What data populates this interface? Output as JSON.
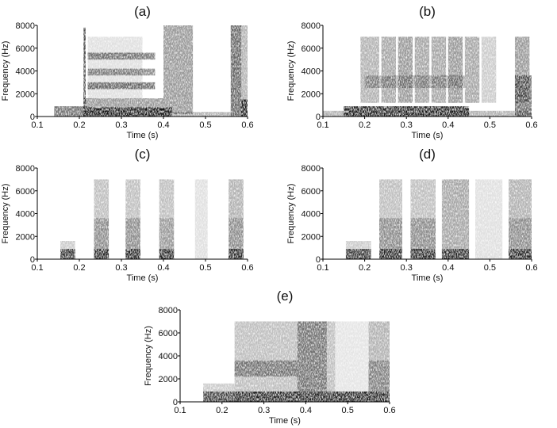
{
  "chart_data": [
    {
      "type": "heatmap",
      "title": "(a)",
      "xlabel": "Time (s)",
      "ylabel": "Frequency (Hz)",
      "xlim": [
        0.1,
        0.6
      ],
      "ylim": [
        0,
        8000
      ],
      "x_ticks": [
        "0.1",
        "0.2",
        "0.3",
        "0.4",
        "0.5",
        "0.6"
      ],
      "y_ticks": [
        "0",
        "2000",
        "4000",
        "6000",
        "8000"
      ],
      "grid": false,
      "colormap": "grayscale",
      "regions": [
        {
          "t": [
            0.14,
            0.22
          ],
          "f": [
            0,
            900
          ],
          "intensity": 0.55
        },
        {
          "t": [
            0.21,
            0.42
          ],
          "f": [
            0,
            800
          ],
          "intensity": 0.9
        },
        {
          "t": [
            0.21,
            0.4
          ],
          "f": [
            800,
            1600
          ],
          "intensity": 0.4
        },
        {
          "t": [
            0.22,
            0.38
          ],
          "f": [
            2400,
            3000
          ],
          "intensity": 0.55
        },
        {
          "t": [
            0.22,
            0.38
          ],
          "f": [
            3600,
            4200
          ],
          "intensity": 0.45
        },
        {
          "t": [
            0.22,
            0.38
          ],
          "f": [
            5000,
            5600
          ],
          "intensity": 0.5
        },
        {
          "t": [
            0.22,
            0.35
          ],
          "f": [
            1600,
            7000
          ],
          "intensity": 0.12
        },
        {
          "t": [
            0.4,
            0.47
          ],
          "f": [
            200,
            8000
          ],
          "intensity": 0.4
        },
        {
          "t": [
            0.42,
            0.56
          ],
          "f": [
            0,
            400
          ],
          "intensity": 0.3
        },
        {
          "t": [
            0.21,
            0.215
          ],
          "f": [
            0,
            7800
          ],
          "intensity": 0.7
        },
        {
          "t": [
            0.56,
            0.585
          ],
          "f": [
            0,
            8000
          ],
          "intensity": 0.6
        },
        {
          "t": [
            0.585,
            0.6
          ],
          "f": [
            0,
            1500
          ],
          "intensity": 0.9
        },
        {
          "t": [
            0.585,
            0.6
          ],
          "f": [
            1500,
            8000
          ],
          "intensity": 0.3
        }
      ]
    },
    {
      "type": "heatmap",
      "title": "(b)",
      "xlabel": "Time (s)",
      "ylabel": "Frequency (Hz)",
      "xlim": [
        0.1,
        0.6
      ],
      "ylim": [
        0,
        8000
      ],
      "x_ticks": [
        "0.1",
        "0.2",
        "0.3",
        "0.4",
        "0.5",
        "0.6"
      ],
      "y_ticks": [
        "0",
        "2000",
        "4000",
        "6000",
        "8000"
      ],
      "grid": false,
      "colormap": "grayscale",
      "regions": [
        {
          "t": [
            0.1,
            0.6
          ],
          "f": [
            0,
            500
          ],
          "intensity": 0.3
        },
        {
          "t": [
            0.15,
            0.45
          ],
          "f": [
            0,
            900
          ],
          "intensity": 0.85
        },
        {
          "t": [
            0.19,
            0.235
          ],
          "f": [
            1200,
            7000
          ],
          "intensity": 0.3
        },
        {
          "t": [
            0.24,
            0.275
          ],
          "f": [
            1200,
            7000
          ],
          "intensity": 0.35
        },
        {
          "t": [
            0.28,
            0.315
          ],
          "f": [
            1200,
            7000
          ],
          "intensity": 0.4
        },
        {
          "t": [
            0.32,
            0.355
          ],
          "f": [
            1200,
            7000
          ],
          "intensity": 0.35
        },
        {
          "t": [
            0.36,
            0.395
          ],
          "f": [
            1200,
            7000
          ],
          "intensity": 0.35
        },
        {
          "t": [
            0.4,
            0.435
          ],
          "f": [
            1200,
            7000
          ],
          "intensity": 0.4
        },
        {
          "t": [
            0.44,
            0.475
          ],
          "f": [
            1200,
            7000
          ],
          "intensity": 0.35
        },
        {
          "t": [
            0.48,
            0.515
          ],
          "f": [
            1200,
            7000
          ],
          "intensity": 0.2
        },
        {
          "t": [
            0.56,
            0.595
          ],
          "f": [
            1200,
            7000
          ],
          "intensity": 0.4
        },
        {
          "t": [
            0.2,
            0.44
          ],
          "f": [
            2500,
            3600
          ],
          "intensity": 0.3
        },
        {
          "t": [
            0.56,
            0.6
          ],
          "f": [
            0,
            3600
          ],
          "intensity": 0.55
        }
      ]
    },
    {
      "type": "heatmap",
      "title": "(c)",
      "xlabel": "Time (s)",
      "ylabel": "Frequency (Hz)",
      "xlim": [
        0.1,
        0.6
      ],
      "ylim": [
        0,
        8000
      ],
      "x_ticks": [
        "0.1",
        "0.2",
        "0.3",
        "0.4",
        "0.5",
        "0.6"
      ],
      "y_ticks": [
        "0",
        "2000",
        "4000",
        "6000",
        "8000"
      ],
      "grid": false,
      "colormap": "grayscale",
      "regions": [
        {
          "t": [
            0.155,
            0.19
          ],
          "f": [
            0,
            900
          ],
          "intensity": 0.8
        },
        {
          "t": [
            0.155,
            0.19
          ],
          "f": [
            900,
            1600
          ],
          "intensity": 0.2
        },
        {
          "t": [
            0.235,
            0.27
          ],
          "f": [
            0,
            900
          ],
          "intensity": 0.85
        },
        {
          "t": [
            0.235,
            0.27
          ],
          "f": [
            900,
            3600
          ],
          "intensity": 0.45
        },
        {
          "t": [
            0.235,
            0.27
          ],
          "f": [
            3600,
            7000
          ],
          "intensity": 0.25
        },
        {
          "t": [
            0.31,
            0.345
          ],
          "f": [
            0,
            900
          ],
          "intensity": 0.85
        },
        {
          "t": [
            0.31,
            0.345
          ],
          "f": [
            900,
            3600
          ],
          "intensity": 0.45
        },
        {
          "t": [
            0.31,
            0.345
          ],
          "f": [
            3600,
            7000
          ],
          "intensity": 0.25
        },
        {
          "t": [
            0.39,
            0.425
          ],
          "f": [
            0,
            900
          ],
          "intensity": 0.85
        },
        {
          "t": [
            0.39,
            0.425
          ],
          "f": [
            900,
            3600
          ],
          "intensity": 0.4
        },
        {
          "t": [
            0.39,
            0.425
          ],
          "f": [
            3600,
            7000
          ],
          "intensity": 0.25
        },
        {
          "t": [
            0.475,
            0.505
          ],
          "f": [
            0,
            7000
          ],
          "intensity": 0.12
        },
        {
          "t": [
            0.555,
            0.59
          ],
          "f": [
            0,
            900
          ],
          "intensity": 0.85
        },
        {
          "t": [
            0.555,
            0.59
          ],
          "f": [
            900,
            3600
          ],
          "intensity": 0.45
        },
        {
          "t": [
            0.555,
            0.59
          ],
          "f": [
            3600,
            7000
          ],
          "intensity": 0.3
        }
      ]
    },
    {
      "type": "heatmap",
      "title": "(d)",
      "xlabel": "Time (s)",
      "ylabel": "Frequency (Hz)",
      "xlim": [
        0.1,
        0.6
      ],
      "ylim": [
        0,
        8000
      ],
      "x_ticks": [
        "0.1",
        "0.2",
        "0.3",
        "0.4",
        "0.5",
        "0.6"
      ],
      "y_ticks": [
        "0",
        "2000",
        "4000",
        "6000",
        "8000"
      ],
      "grid": false,
      "colormap": "grayscale",
      "regions": [
        {
          "t": [
            0.155,
            0.215
          ],
          "f": [
            0,
            900
          ],
          "intensity": 0.8
        },
        {
          "t": [
            0.155,
            0.215
          ],
          "f": [
            900,
            1600
          ],
          "intensity": 0.2
        },
        {
          "t": [
            0.235,
            0.29
          ],
          "f": [
            0,
            900
          ],
          "intensity": 0.85
        },
        {
          "t": [
            0.235,
            0.29
          ],
          "f": [
            900,
            3600
          ],
          "intensity": 0.45
        },
        {
          "t": [
            0.235,
            0.29
          ],
          "f": [
            3600,
            7000
          ],
          "intensity": 0.25
        },
        {
          "t": [
            0.31,
            0.37
          ],
          "f": [
            0,
            900
          ],
          "intensity": 0.85
        },
        {
          "t": [
            0.31,
            0.37
          ],
          "f": [
            900,
            3600
          ],
          "intensity": 0.45
        },
        {
          "t": [
            0.31,
            0.37
          ],
          "f": [
            3600,
            7000
          ],
          "intensity": 0.25
        },
        {
          "t": [
            0.385,
            0.45
          ],
          "f": [
            0,
            900
          ],
          "intensity": 0.85
        },
        {
          "t": [
            0.385,
            0.45
          ],
          "f": [
            900,
            7000
          ],
          "intensity": 0.35
        },
        {
          "t": [
            0.465,
            0.53
          ],
          "f": [
            0,
            7000
          ],
          "intensity": 0.12
        },
        {
          "t": [
            0.545,
            0.6
          ],
          "f": [
            0,
            900
          ],
          "intensity": 0.85
        },
        {
          "t": [
            0.545,
            0.6
          ],
          "f": [
            900,
            3600
          ],
          "intensity": 0.45
        },
        {
          "t": [
            0.545,
            0.6
          ],
          "f": [
            3600,
            7000
          ],
          "intensity": 0.3
        }
      ]
    },
    {
      "type": "heatmap",
      "title": "(e)",
      "xlabel": "Time (s)",
      "ylabel": "Frequency (Hz)",
      "xlim": [
        0.1,
        0.6
      ],
      "ylim": [
        0,
        8000
      ],
      "x_ticks": [
        "0.1",
        "0.2",
        "0.3",
        "0.4",
        "0.5",
        "0.6"
      ],
      "y_ticks": [
        "0",
        "2000",
        "4000",
        "6000",
        "8000"
      ],
      "grid": false,
      "colormap": "grayscale",
      "regions": [
        {
          "t": [
            0.155,
            0.23
          ],
          "f": [
            0,
            900
          ],
          "intensity": 0.75
        },
        {
          "t": [
            0.155,
            0.23
          ],
          "f": [
            900,
            1600
          ],
          "intensity": 0.2
        },
        {
          "t": [
            0.23,
            0.6
          ],
          "f": [
            0,
            900
          ],
          "intensity": 0.85
        },
        {
          "t": [
            0.23,
            0.38
          ],
          "f": [
            2200,
            3600
          ],
          "intensity": 0.4
        },
        {
          "t": [
            0.23,
            0.47
          ],
          "f": [
            900,
            7000
          ],
          "intensity": 0.25
        },
        {
          "t": [
            0.38,
            0.45
          ],
          "f": [
            900,
            7000
          ],
          "intensity": 0.4
        },
        {
          "t": [
            0.47,
            0.55
          ],
          "f": [
            0,
            7000
          ],
          "intensity": 0.1
        },
        {
          "t": [
            0.55,
            0.6
          ],
          "f": [
            900,
            3600
          ],
          "intensity": 0.5
        },
        {
          "t": [
            0.55,
            0.6
          ],
          "f": [
            3600,
            7000
          ],
          "intensity": 0.3
        }
      ]
    }
  ]
}
